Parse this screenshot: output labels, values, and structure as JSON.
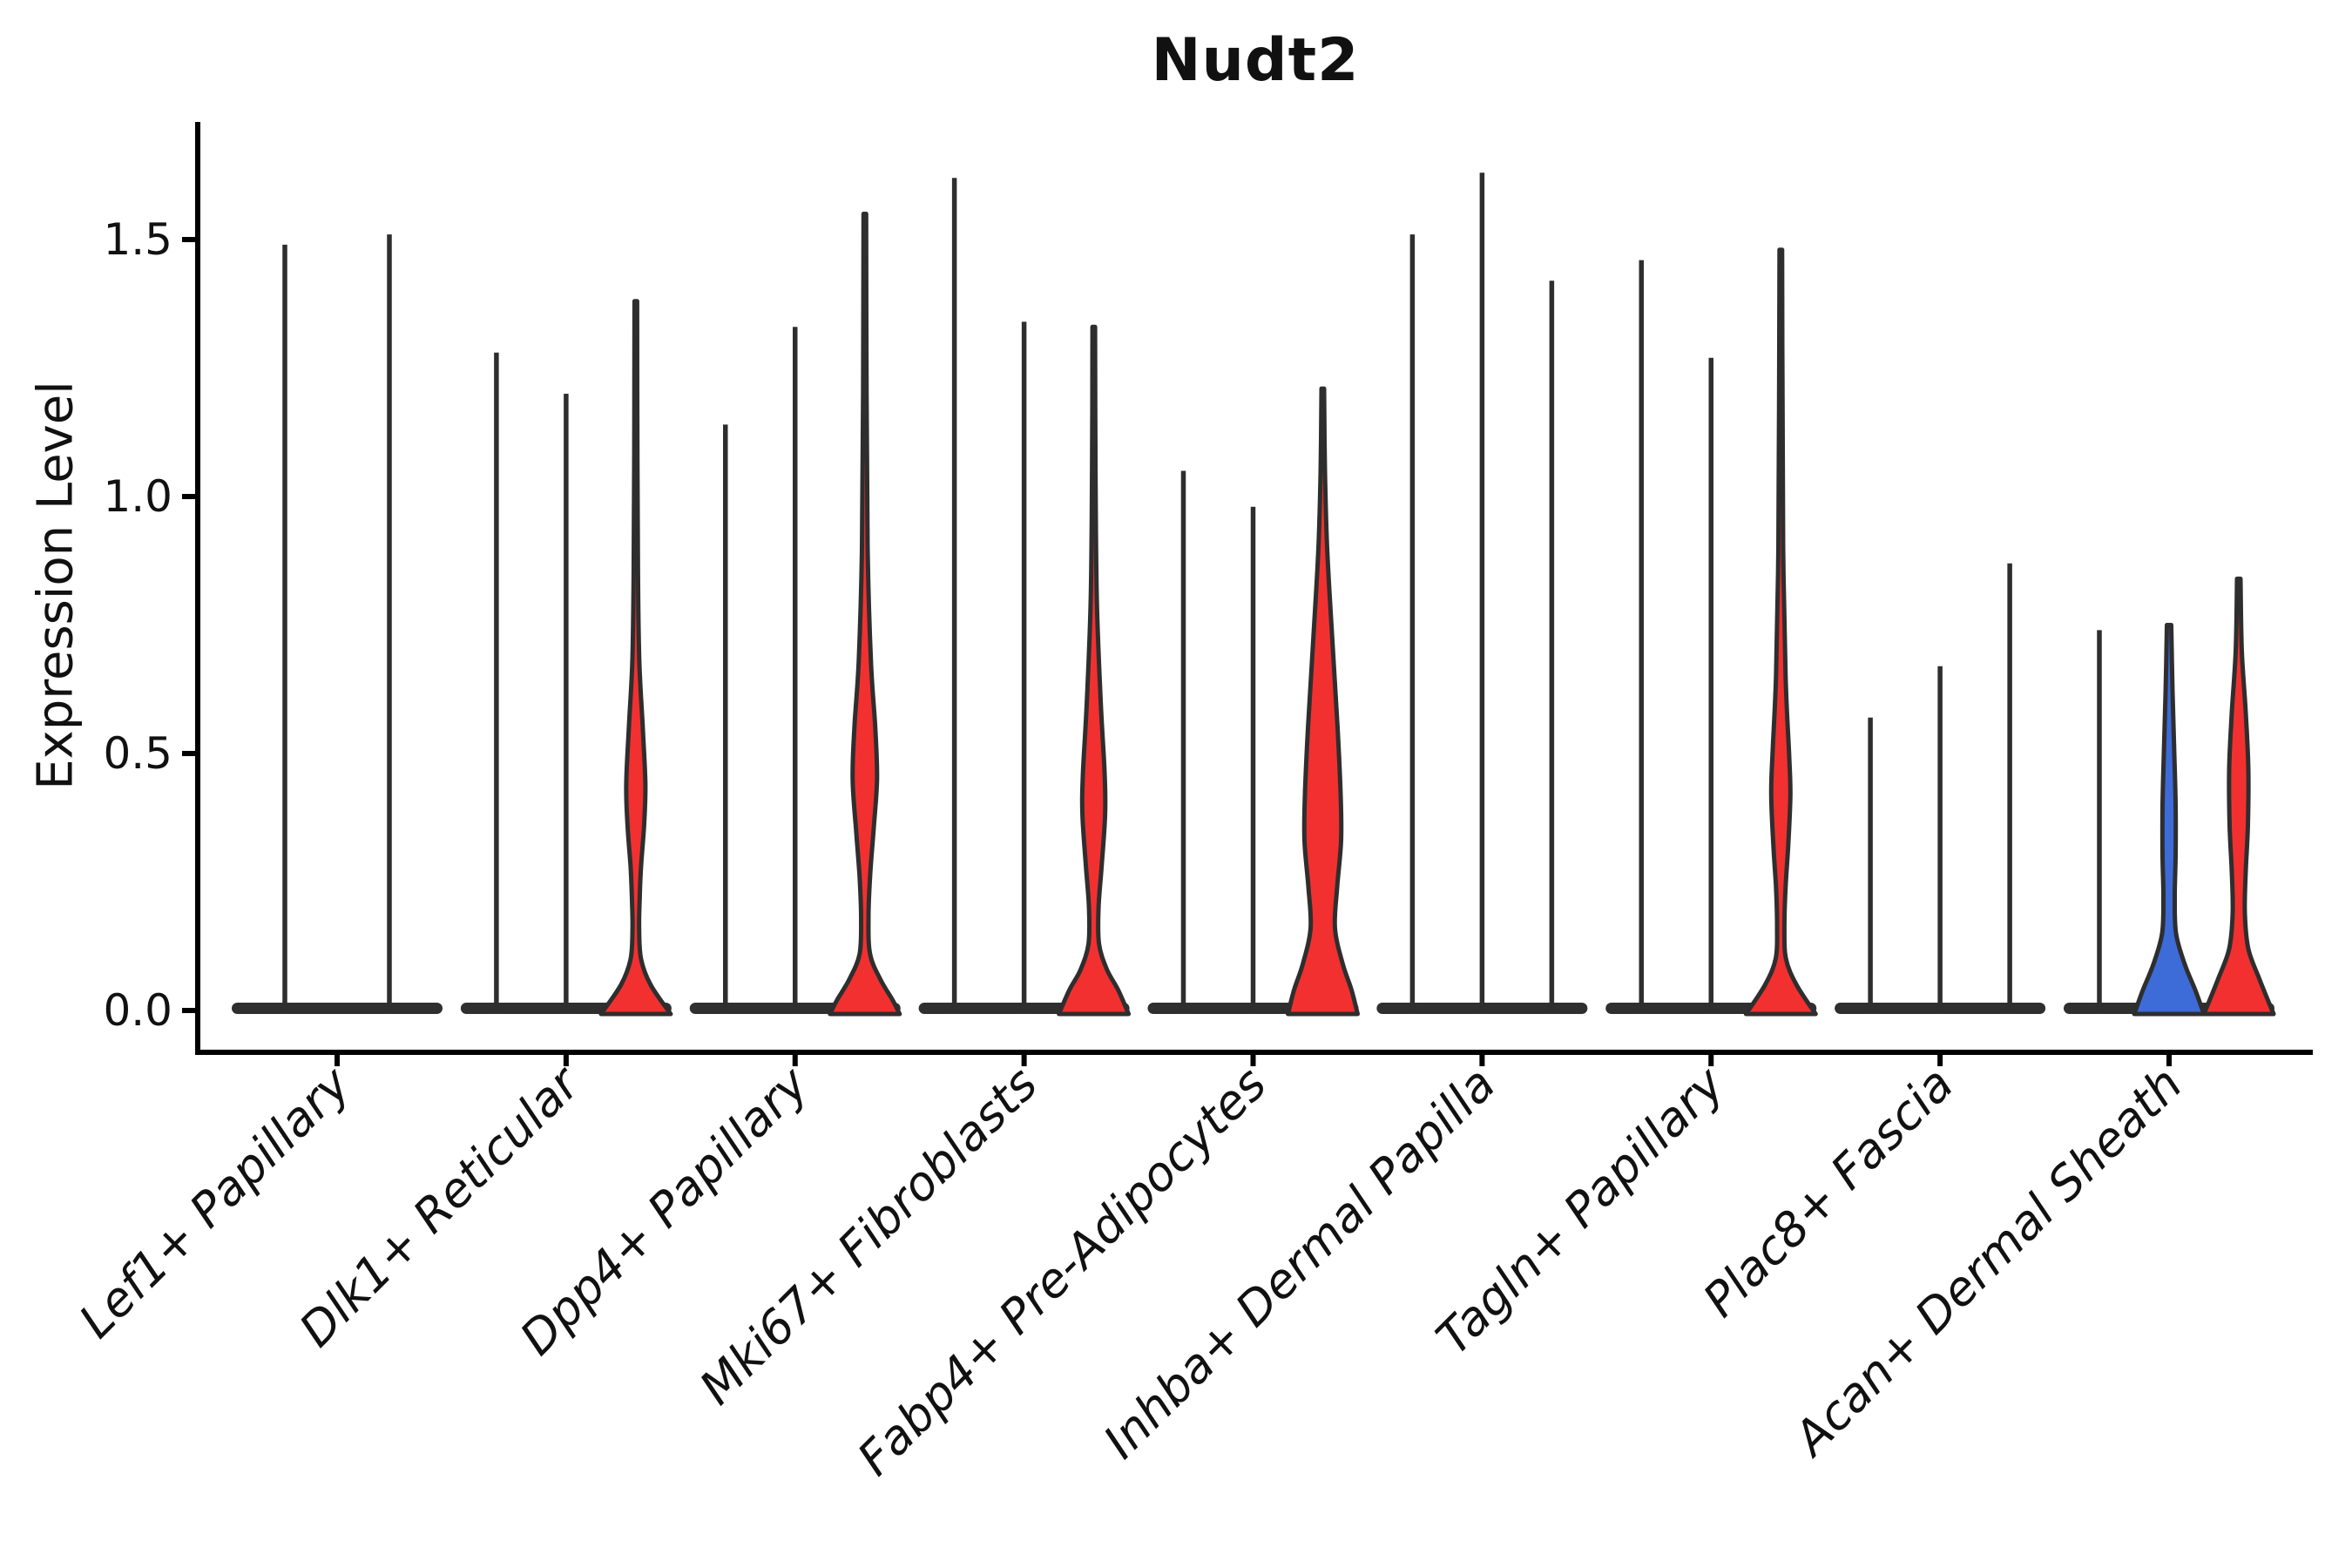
{
  "chart_data": {
    "type": "violin",
    "title": "Nudt2",
    "ylabel": "Expression Level",
    "xlabel": "",
    "ylim": [
      0,
      1.73
    ],
    "yticks": [
      0.0,
      0.5,
      1.0,
      1.5
    ],
    "grid": false,
    "legend_position": "none",
    "palette": {
      "red": "#f23030",
      "blue": "#3d6bd8",
      "spike": "#2e2e2e",
      "outline": "#2e2e2e",
      "band": "#2f2f2f",
      "axis": "#000000",
      "text": "#111111"
    },
    "categories": [
      "Lef1+ Papillary",
      "Dlk1+ Reticular",
      "Dpp4+ Papillary",
      "Mki67+ Fibroblasts",
      "Fabp4+ Pre-Adipocytes",
      "Inhba+ Dermal Papilla",
      "Tagln+ Papillary",
      "Plac8+ Fascia",
      "Acan+ Dermal Sheath"
    ],
    "groups": [
      {
        "category": "Lef1+ Papillary",
        "violins": [
          {
            "offset": -60,
            "max": 1.49,
            "style": "thin"
          },
          {
            "offset": 60,
            "max": 1.51,
            "style": "thin"
          }
        ]
      },
      {
        "category": "Dlk1+ Reticular",
        "violins": [
          {
            "offset": -80,
            "max": 1.28,
            "style": "thin"
          },
          {
            "offset": 0,
            "max": 1.2,
            "style": "thin"
          },
          {
            "offset": 80,
            "max": 1.38,
            "style": "violin",
            "color": "red",
            "profile": [
              [
                1.38,
                1.5
              ],
              [
                1.1,
                1.8
              ],
              [
                0.85,
                2.5
              ],
              [
                0.68,
                4
              ],
              [
                0.55,
                8
              ],
              [
                0.44,
                11
              ],
              [
                0.36,
                9.5
              ],
              [
                0.28,
                6
              ],
              [
                0.22,
                4.5
              ],
              [
                0.16,
                3.8
              ],
              [
                0.1,
                6
              ],
              [
                0.05,
                17
              ],
              [
                0,
                40
              ]
            ]
          }
        ]
      },
      {
        "category": "Dpp4+ Papillary",
        "violins": [
          {
            "offset": -80,
            "max": 1.14,
            "style": "thin"
          },
          {
            "offset": 0,
            "max": 1.33,
            "style": "thin"
          },
          {
            "offset": 80,
            "max": 1.55,
            "style": "violin",
            "color": "red",
            "profile": [
              [
                1.55,
                1.5
              ],
              [
                1.2,
                2
              ],
              [
                0.9,
                3.2
              ],
              [
                0.68,
                7
              ],
              [
                0.55,
                12
              ],
              [
                0.45,
                14
              ],
              [
                0.35,
                10
              ],
              [
                0.26,
                6
              ],
              [
                0.18,
                4.2
              ],
              [
                0.11,
                6
              ],
              [
                0.06,
                18
              ],
              [
                0.02,
                32
              ],
              [
                0,
                40
              ]
            ]
          }
        ]
      },
      {
        "category": "Mki67+ Fibroblasts",
        "violins": [
          {
            "offset": -80,
            "max": 1.62,
            "style": "thin"
          },
          {
            "offset": 0,
            "max": 1.34,
            "style": "thin"
          },
          {
            "offset": 80,
            "max": 1.33,
            "style": "violin",
            "color": "red",
            "profile": [
              [
                1.33,
                1.5
              ],
              [
                1.05,
                2
              ],
              [
                0.8,
                3.5
              ],
              [
                0.6,
                8
              ],
              [
                0.46,
                12.5
              ],
              [
                0.38,
                13
              ],
              [
                0.28,
                9
              ],
              [
                0.2,
                5.5
              ],
              [
                0.13,
                6
              ],
              [
                0.08,
                15
              ],
              [
                0.04,
                28
              ],
              [
                0,
                40
              ]
            ]
          }
        ]
      },
      {
        "category": "Fabp4+ Pre-Adipocytes",
        "violins": [
          {
            "offset": -80,
            "max": 1.05,
            "style": "thin"
          },
          {
            "offset": 0,
            "max": 0.98,
            "style": "thin"
          },
          {
            "offset": 80,
            "max": 1.21,
            "style": "violin",
            "color": "red",
            "profile": [
              [
                1.21,
                1.5
              ],
              [
                1.05,
                2.5
              ],
              [
                0.9,
                5
              ],
              [
                0.72,
                11
              ],
              [
                0.55,
                17
              ],
              [
                0.42,
                20.5
              ],
              [
                0.33,
                21
              ],
              [
                0.24,
                16.5
              ],
              [
                0.16,
                14
              ],
              [
                0.09,
                23
              ],
              [
                0.04,
                33
              ],
              [
                0,
                40
              ]
            ]
          }
        ]
      },
      {
        "category": "Inhba+ Dermal Papilla",
        "violins": [
          {
            "offset": -80,
            "max": 1.51,
            "style": "thin"
          },
          {
            "offset": 0,
            "max": 1.63,
            "style": "thin"
          },
          {
            "offset": 80,
            "max": 1.42,
            "style": "thin"
          }
        ]
      },
      {
        "category": "Tagln+ Papillary",
        "violins": [
          {
            "offset": -80,
            "max": 1.46,
            "style": "thin"
          },
          {
            "offset": 0,
            "max": 1.27,
            "style": "thin"
          },
          {
            "offset": 80,
            "max": 1.48,
            "style": "violin",
            "color": "red",
            "profile": [
              [
                1.48,
                1.5
              ],
              [
                1.18,
                2
              ],
              [
                0.9,
                2.8
              ],
              [
                0.65,
                5.5
              ],
              [
                0.5,
                9.5
              ],
              [
                0.42,
                11
              ],
              [
                0.32,
                8.5
              ],
              [
                0.24,
                5.5
              ],
              [
                0.16,
                4.2
              ],
              [
                0.1,
                6
              ],
              [
                0.05,
                18
              ],
              [
                0,
                40
              ]
            ]
          }
        ]
      },
      {
        "category": "Plac8+ Fascia",
        "violins": [
          {
            "offset": -80,
            "max": 0.57,
            "style": "thin"
          },
          {
            "offset": 0,
            "max": 0.67,
            "style": "thin"
          },
          {
            "offset": 80,
            "max": 0.87,
            "style": "thin"
          }
        ]
      },
      {
        "category": "Acan+ Dermal Sheath",
        "violins": [
          {
            "offset": -80,
            "max": 0.74,
            "style": "thin"
          },
          {
            "offset": 0,
            "max": 0.75,
            "style": "violin",
            "color": "blue",
            "profile": [
              [
                0.75,
                2.5
              ],
              [
                0.62,
                4
              ],
              [
                0.5,
                6
              ],
              [
                0.4,
                7.5
              ],
              [
                0.3,
                7.5
              ],
              [
                0.22,
                6.5
              ],
              [
                0.15,
                8
              ],
              [
                0.09,
                18
              ],
              [
                0.04,
                30
              ],
              [
                0,
                40
              ]
            ]
          },
          {
            "offset": 80,
            "max": 0.84,
            "style": "violin",
            "color": "red",
            "profile": [
              [
                0.84,
                2
              ],
              [
                0.7,
                3.5
              ],
              [
                0.58,
                8
              ],
              [
                0.47,
                11
              ],
              [
                0.36,
                10.5
              ],
              [
                0.27,
                8
              ],
              [
                0.19,
                7
              ],
              [
                0.12,
                11
              ],
              [
                0.06,
                24
              ],
              [
                0,
                40
              ]
            ]
          }
        ]
      }
    ]
  }
}
